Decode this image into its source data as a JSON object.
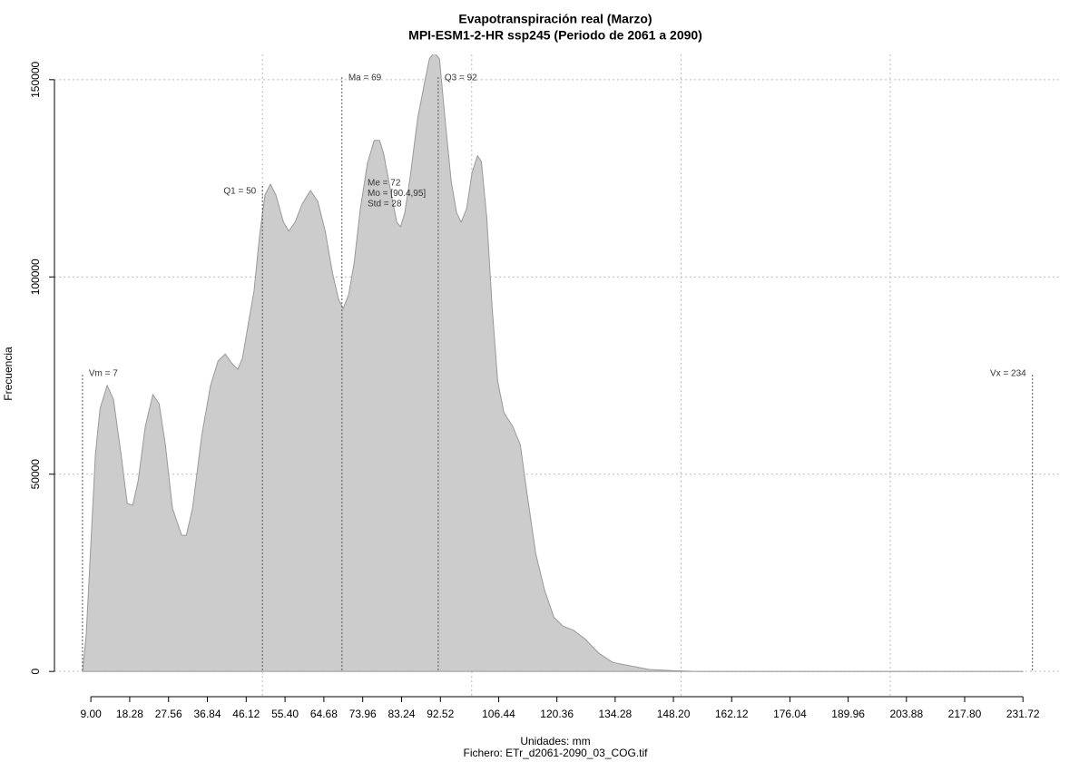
{
  "chart_data": {
    "type": "area",
    "title": "Evapotranspiración real (Marzo)",
    "subtitle": "MPI-ESM1-2-HR ssp245 (Periodo de 2061 a 2090)",
    "y_label": "Frecuencia",
    "x_label": "Unidades: mm",
    "caption": "Fichero: ETr_d2061-2090_03_COG.tif",
    "color": "#cccccc",
    "x": [
      7.0,
      7.9,
      10.1,
      11.2,
      12.9,
      14.4,
      16.2,
      17.7,
      19.0,
      20.3,
      22.0,
      23.8,
      25.3,
      26.8,
      28.5,
      30.7,
      31.8,
      33.3,
      35.5,
      37.6,
      39.4,
      41.1,
      42.6,
      44.1,
      45.2,
      46.5,
      48.0,
      49.3,
      50.6,
      51.9,
      53.2,
      55.0,
      56.3,
      57.8,
      59.5,
      61.5,
      63.2,
      65.0,
      66.7,
      68.2,
      69.3,
      70.6,
      71.9,
      73.4,
      75.1,
      76.7,
      78.0,
      79.0,
      80.6,
      82.1,
      83.0,
      84.0,
      85.3,
      87.1,
      88.8,
      89.9,
      91.0,
      92.3,
      93.6,
      95.1,
      96.4,
      97.5,
      98.8,
      100.1,
      101.4,
      102.3,
      103.6,
      104.9,
      106.2,
      107.7,
      109.8,
      111.6,
      113.1,
      115.3,
      117.4,
      119.6,
      121.8,
      124.4,
      127.2,
      130.4,
      133.7,
      138.0,
      142.4,
      147.8,
      154.3,
      231.7
    ],
    "values": [
      0,
      9200,
      55200,
      66700,
      72500,
      69000,
      55200,
      42600,
      42100,
      48300,
      62100,
      70200,
      67900,
      57500,
      41400,
      34500,
      34500,
      41400,
      59800,
      72500,
      78700,
      80500,
      78200,
      76600,
      79400,
      87400,
      96600,
      110400,
      120800,
      123500,
      120800,
      113900,
      111600,
      113900,
      118500,
      121900,
      119200,
      111600,
      101200,
      94300,
      92000,
      95500,
      103500,
      117300,
      128800,
      134600,
      134600,
      131100,
      121900,
      113900,
      112700,
      116200,
      125400,
      140300,
      149500,
      155300,
      156900,
      155300,
      140300,
      124200,
      116200,
      113900,
      117300,
      126500,
      130700,
      129300,
      115000,
      92000,
      73600,
      65600,
      62100,
      57500,
      46000,
      29900,
      20700,
      13800,
      11500,
      10400,
      8100,
      4600,
      2300,
      1400,
      500,
      200,
      0,
      0
    ],
    "xlim": [
      0.3,
      241.0
    ],
    "ylim": [
      -6400,
      156400
    ],
    "xticks": [
      {
        "value": 9.0,
        "label": "9.00"
      },
      18.28,
      27.56,
      36.84,
      46.12,
      {
        "value": 55.4,
        "label": "55.40"
      },
      64.68,
      73.96,
      83.24,
      92.52,
      106.44,
      120.36,
      134.28,
      {
        "value": 148.2,
        "label": "148.20"
      },
      162.12,
      176.04,
      189.96,
      203.88,
      {
        "value": 217.8,
        "label": "217.80"
      },
      231.72
    ],
    "yticks": [
      0,
      50000,
      100000,
      150000
    ],
    "xgrid": [
      50,
      100,
      150,
      200
    ],
    "grid": true,
    "stats": [
      {
        "label": "Vm = 7",
        "value": 7
      },
      {
        "label": "Q1 = 50",
        "value": 50
      },
      {
        "label": "Ma = 69",
        "value": 69
      },
      {
        "label": "Q3 = 92",
        "value": 92
      },
      {
        "label": "Vx = 234",
        "value": 234
      }
    ],
    "annotations": [
      "Me = 72",
      "Mo = [90.4,95]",
      "Std = 28"
    ]
  }
}
